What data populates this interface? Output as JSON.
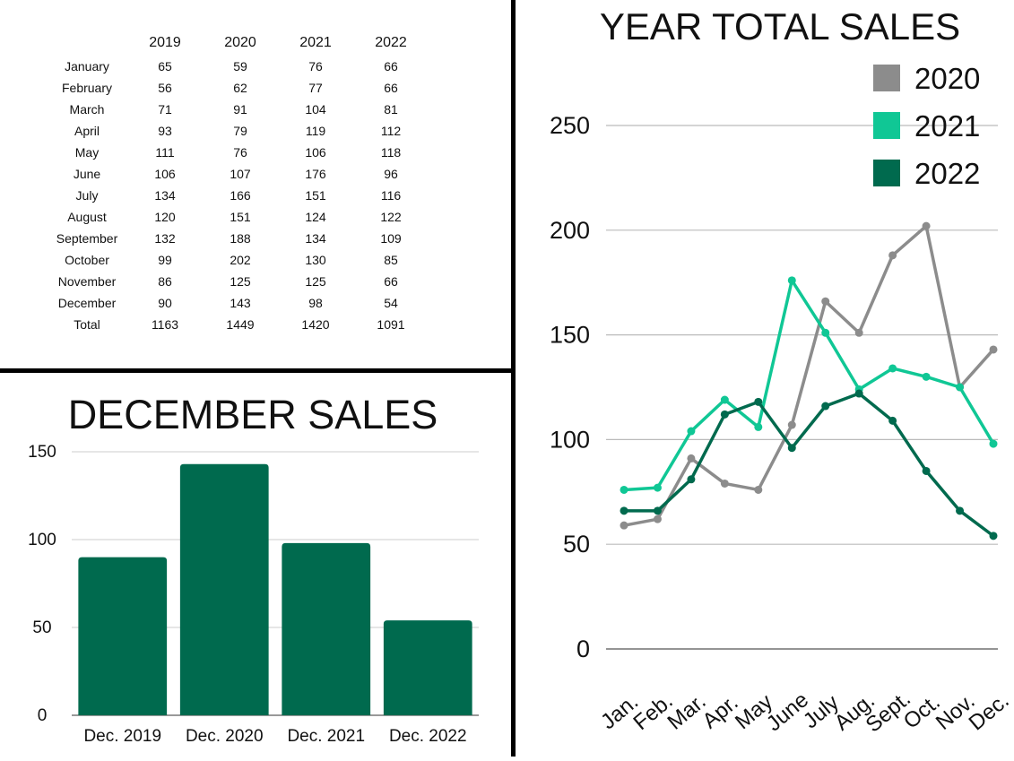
{
  "table": {
    "years": [
      "2019",
      "2020",
      "2021",
      "2022"
    ],
    "rows": [
      {
        "month": "January",
        "values": [
          "65",
          "59",
          "76",
          "66"
        ]
      },
      {
        "month": "February",
        "values": [
          "56",
          "62",
          "77",
          "66"
        ]
      },
      {
        "month": "March",
        "values": [
          "71",
          "91",
          "104",
          "81"
        ]
      },
      {
        "month": "April",
        "values": [
          "93",
          "79",
          "119",
          "112"
        ]
      },
      {
        "month": "May",
        "values": [
          "111",
          "76",
          "106",
          "118"
        ]
      },
      {
        "month": "June",
        "values": [
          "106",
          "107",
          "176",
          "96"
        ]
      },
      {
        "month": "July",
        "values": [
          "134",
          "166",
          "151",
          "116"
        ]
      },
      {
        "month": "August",
        "values": [
          "120",
          "151",
          "124",
          "122"
        ]
      },
      {
        "month": "September",
        "values": [
          "132",
          "188",
          "134",
          "109"
        ]
      },
      {
        "month": "October",
        "values": [
          "99",
          "202",
          "130",
          "85"
        ]
      },
      {
        "month": "November",
        "values": [
          "86",
          "125",
          "125",
          "66"
        ]
      },
      {
        "month": "December",
        "values": [
          "90",
          "143",
          "98",
          "54"
        ]
      },
      {
        "month": "Total",
        "values": [
          "1163",
          "1449",
          "1420",
          "1091"
        ]
      }
    ]
  },
  "chart_data": [
    {
      "type": "bar",
      "title": "DECEMBER SALES",
      "categories": [
        "Dec. 2019",
        "Dec. 2020",
        "Dec. 2021",
        "Dec. 2022"
      ],
      "values": [
        90,
        143,
        98,
        54
      ],
      "ylim": [
        0,
        150
      ],
      "yticks": [
        0,
        50,
        100,
        150
      ],
      "bar_color": "#006a4e",
      "grid": true,
      "xlabel": "",
      "ylabel": ""
    },
    {
      "type": "line",
      "title": "YEAR TOTAL SALES",
      "categories": [
        "Jan.",
        "Feb.",
        "Mar.",
        "Apr.",
        "May",
        "June",
        "July",
        "Aug.",
        "Sept.",
        "Oct.",
        "Nov.",
        "Dec."
      ],
      "series": [
        {
          "name": "2020",
          "color": "#8c8c8c",
          "values": [
            59,
            62,
            91,
            79,
            76,
            107,
            166,
            151,
            188,
            202,
            125,
            143
          ]
        },
        {
          "name": "2021",
          "color": "#10c795",
          "values": [
            76,
            77,
            104,
            119,
            106,
            176,
            151,
            124,
            134,
            130,
            125,
            98
          ]
        },
        {
          "name": "2022",
          "color": "#006a4e",
          "values": [
            66,
            66,
            81,
            112,
            118,
            96,
            116,
            122,
            109,
            85,
            66,
            54
          ]
        }
      ],
      "ylim": [
        0,
        250
      ],
      "yticks": [
        0,
        50,
        100,
        150,
        200,
        250
      ],
      "legend": "top-right",
      "grid": true,
      "xlabel": "",
      "ylabel": ""
    }
  ]
}
